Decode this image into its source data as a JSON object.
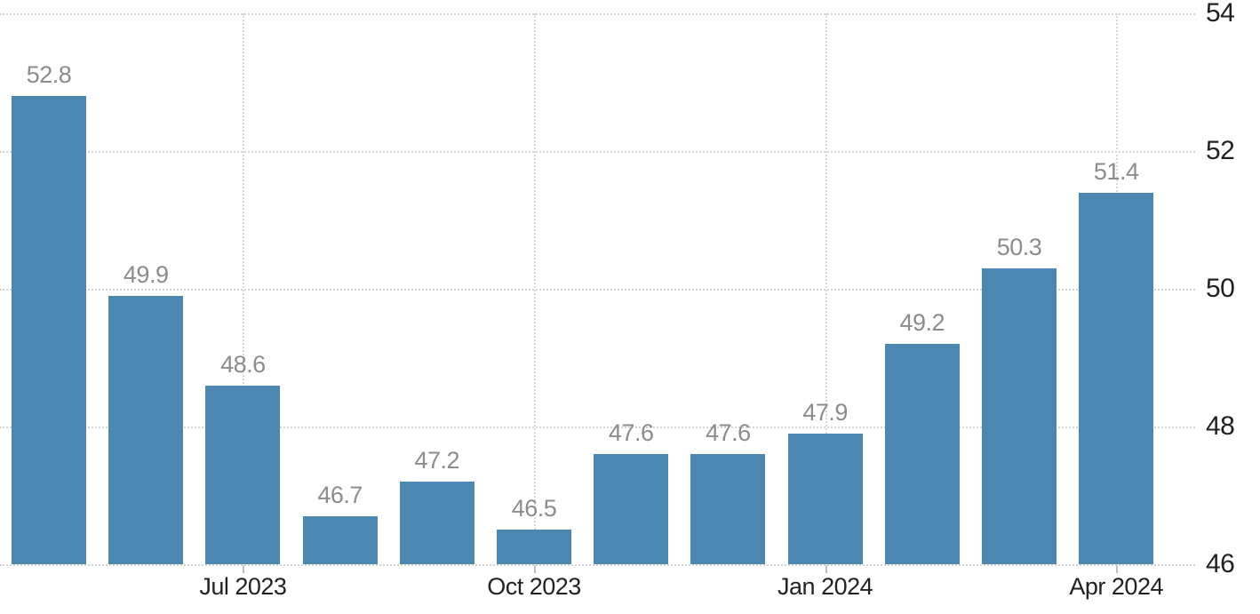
{
  "chart_data": {
    "type": "bar",
    "values": [
      52.8,
      49.9,
      48.6,
      46.7,
      47.2,
      46.5,
      47.6,
      47.6,
      47.9,
      49.2,
      50.3,
      51.4
    ],
    "value_labels": [
      "52.8",
      "49.9",
      "48.6",
      "46.7",
      "47.2",
      "46.5",
      "47.6",
      "47.6",
      "47.9",
      "49.2",
      "50.3",
      "51.4"
    ],
    "x_ticks": [
      {
        "label": "Jul 2023",
        "bar_index": 2
      },
      {
        "label": "Oct 2023",
        "bar_index": 5
      },
      {
        "label": "Jan 2024",
        "bar_index": 8
      },
      {
        "label": "Apr 2024",
        "bar_index": 11
      }
    ],
    "y_ticks": [
      "54",
      "52",
      "50",
      "48",
      "46"
    ],
    "ylim": [
      46,
      54
    ],
    "title": "",
    "xlabel": "",
    "ylabel": "",
    "grid": true,
    "legend_position": "none",
    "y_axis_side": "right",
    "colors": {
      "bar": "#4c87b1",
      "value_label": "#8c8c8c",
      "axis_label": "#222222",
      "gridline": "#d4d4d4",
      "tick_mark": "#c0c0c0",
      "background": "#ffffff"
    }
  }
}
